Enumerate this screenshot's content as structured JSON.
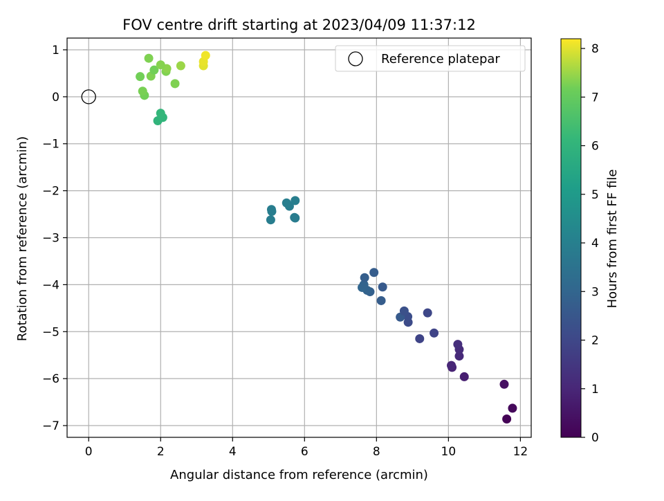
{
  "chart_data": {
    "type": "scatter",
    "title": "FOV centre drift starting at 2023/04/09 11:37:12",
    "xlabel": "Angular distance from reference (arcmin)",
    "ylabel": "Rotation from reference (arcmin)",
    "colorbar_label": "Hours from first FF file",
    "xlim": [
      -0.6,
      12.3
    ],
    "ylim": [
      -7.25,
      1.25
    ],
    "clim": [
      0,
      8.2
    ],
    "x_ticks": [
      0,
      2,
      4,
      6,
      8,
      10,
      12
    ],
    "y_ticks": [
      -7,
      -6,
      -5,
      -4,
      -3,
      -2,
      -1,
      0,
      1
    ],
    "colorbar_ticks": [
      0,
      1,
      2,
      3,
      4,
      5,
      6,
      7,
      8
    ],
    "grid": true,
    "legend_position": "top-right",
    "colormap": "viridis",
    "reference": {
      "name": "Reference platepar",
      "x": 0,
      "y": 0
    },
    "points": [
      {
        "x": 11.62,
        "y": -6.86,
        "c": 0.05
      },
      {
        "x": 11.78,
        "y": -6.63,
        "c": 0.2
      },
      {
        "x": 11.55,
        "y": -6.12,
        "c": 0.4
      },
      {
        "x": 10.44,
        "y": -5.96,
        "c": 0.8
      },
      {
        "x": 10.1,
        "y": -5.76,
        "c": 0.9
      },
      {
        "x": 10.08,
        "y": -5.72,
        "c": 1.0
      },
      {
        "x": 10.3,
        "y": -5.52,
        "c": 1.1
      },
      {
        "x": 10.3,
        "y": -5.38,
        "c": 1.15
      },
      {
        "x": 10.26,
        "y": -5.27,
        "c": 1.25
      },
      {
        "x": 9.2,
        "y": -5.15,
        "c": 1.9
      },
      {
        "x": 9.6,
        "y": -5.03,
        "c": 1.9
      },
      {
        "x": 8.88,
        "y": -4.8,
        "c": 2.1
      },
      {
        "x": 8.87,
        "y": -4.68,
        "c": 2.2
      },
      {
        "x": 8.66,
        "y": -4.69,
        "c": 2.6
      },
      {
        "x": 8.77,
        "y": -4.56,
        "c": 2.3
      },
      {
        "x": 9.42,
        "y": -4.6,
        "c": 2.0
      },
      {
        "x": 8.13,
        "y": -4.34,
        "c": 2.7
      },
      {
        "x": 7.82,
        "y": -4.15,
        "c": 2.8
      },
      {
        "x": 7.74,
        "y": -4.12,
        "c": 2.9
      },
      {
        "x": 7.6,
        "y": -4.06,
        "c": 3.0
      },
      {
        "x": 7.65,
        "y": -4.0,
        "c": 2.95
      },
      {
        "x": 8.17,
        "y": -4.05,
        "c": 2.6
      },
      {
        "x": 7.67,
        "y": -3.85,
        "c": 2.75
      },
      {
        "x": 7.93,
        "y": -3.74,
        "c": 2.7
      },
      {
        "x": 5.06,
        "y": -2.62,
        "c": 3.9
      },
      {
        "x": 5.09,
        "y": -2.44,
        "c": 3.95
      },
      {
        "x": 5.08,
        "y": -2.4,
        "c": 3.9
      },
      {
        "x": 5.72,
        "y": -2.57,
        "c": 3.85
      },
      {
        "x": 5.74,
        "y": -2.58,
        "c": 3.85
      },
      {
        "x": 5.58,
        "y": -2.33,
        "c": 3.9
      },
      {
        "x": 5.5,
        "y": -2.26,
        "c": 3.95
      },
      {
        "x": 5.74,
        "y": -2.21,
        "c": 3.95
      },
      {
        "x": 1.92,
        "y": -0.51,
        "c": 6.0
      },
      {
        "x": 2.06,
        "y": -0.44,
        "c": 6.05
      },
      {
        "x": 2.0,
        "y": -0.35,
        "c": 6.1
      },
      {
        "x": 1.55,
        "y": 0.03,
        "c": 7.2
      },
      {
        "x": 1.5,
        "y": 0.12,
        "c": 7.25
      },
      {
        "x": 2.4,
        "y": 0.28,
        "c": 7.3
      },
      {
        "x": 1.43,
        "y": 0.43,
        "c": 7.2
      },
      {
        "x": 1.73,
        "y": 0.44,
        "c": 7.3
      },
      {
        "x": 1.82,
        "y": 0.57,
        "c": 7.2
      },
      {
        "x": 2.15,
        "y": 0.54,
        "c": 7.3
      },
      {
        "x": 2.17,
        "y": 0.6,
        "c": 7.4
      },
      {
        "x": 2.0,
        "y": 0.68,
        "c": 7.35
      },
      {
        "x": 1.67,
        "y": 0.82,
        "c": 7.3
      },
      {
        "x": 2.56,
        "y": 0.66,
        "c": 7.5
      },
      {
        "x": 3.19,
        "y": 0.66,
        "c": 8.0
      },
      {
        "x": 3.19,
        "y": 0.75,
        "c": 8.05
      },
      {
        "x": 3.25,
        "y": 0.88,
        "c": 8.1
      }
    ]
  }
}
